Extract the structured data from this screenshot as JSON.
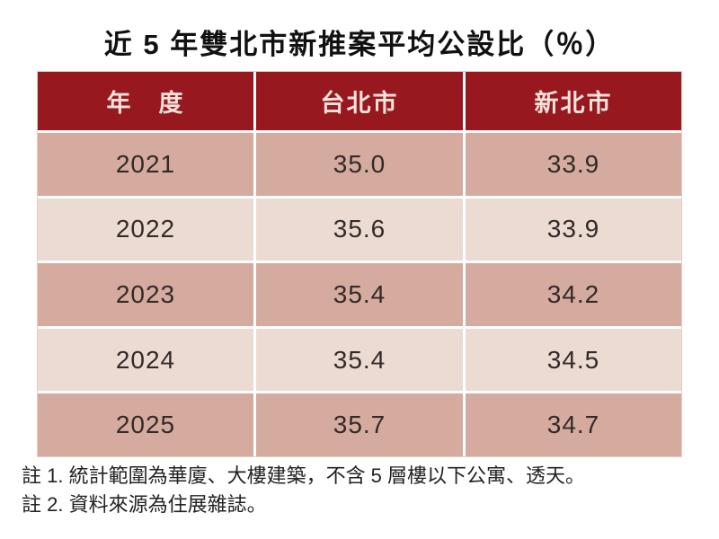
{
  "page": {
    "title": "近 5 年雙北市新推案平均公設比（％）"
  },
  "table": {
    "headers": [
      "年　度",
      "台北市",
      "新北市"
    ],
    "rows": [
      [
        "2021",
        "35.0",
        "33.9"
      ],
      [
        "2022",
        "35.6",
        "33.9"
      ],
      [
        "2023",
        "35.4",
        "34.2"
      ],
      [
        "2024",
        "35.4",
        "34.5"
      ],
      [
        "2025",
        "35.7",
        "34.7"
      ]
    ]
  },
  "notes": [
    "註 1. 統計範圍為華廈、大樓建築，不含 5 層樓以下公寓、透天。",
    "註 2. 資料來源為住展雜誌。"
  ],
  "colors": {
    "header_bg": "#97181E",
    "header_text": "#F5E2DC",
    "row_odd_bg": "#D4AB9E",
    "row_even_bg": "#EBDBD2",
    "cell_text": "#332A28",
    "title_text": "#111111",
    "note_text": "#222222",
    "divider": "#FFFFFF"
  },
  "chart_data": {
    "type": "table",
    "title": "近 5 年雙北市新推案平均公設比（％）",
    "categories": [
      "2021",
      "2022",
      "2023",
      "2024",
      "2025"
    ],
    "series": [
      {
        "name": "台北市",
        "values": [
          35.0,
          35.6,
          35.4,
          35.4,
          35.7
        ]
      },
      {
        "name": "新北市",
        "values": [
          33.9,
          33.9,
          34.2,
          34.5,
          34.7
        ]
      }
    ],
    "column_headers": [
      "年　度",
      "台北市",
      "新北市"
    ],
    "unit": "%",
    "annotations": [
      "註 1. 統計範圍為華廈、大樓建築，不含 5 層樓以下公寓、透天。",
      "註 2. 資料來源為住展雜誌。"
    ]
  }
}
